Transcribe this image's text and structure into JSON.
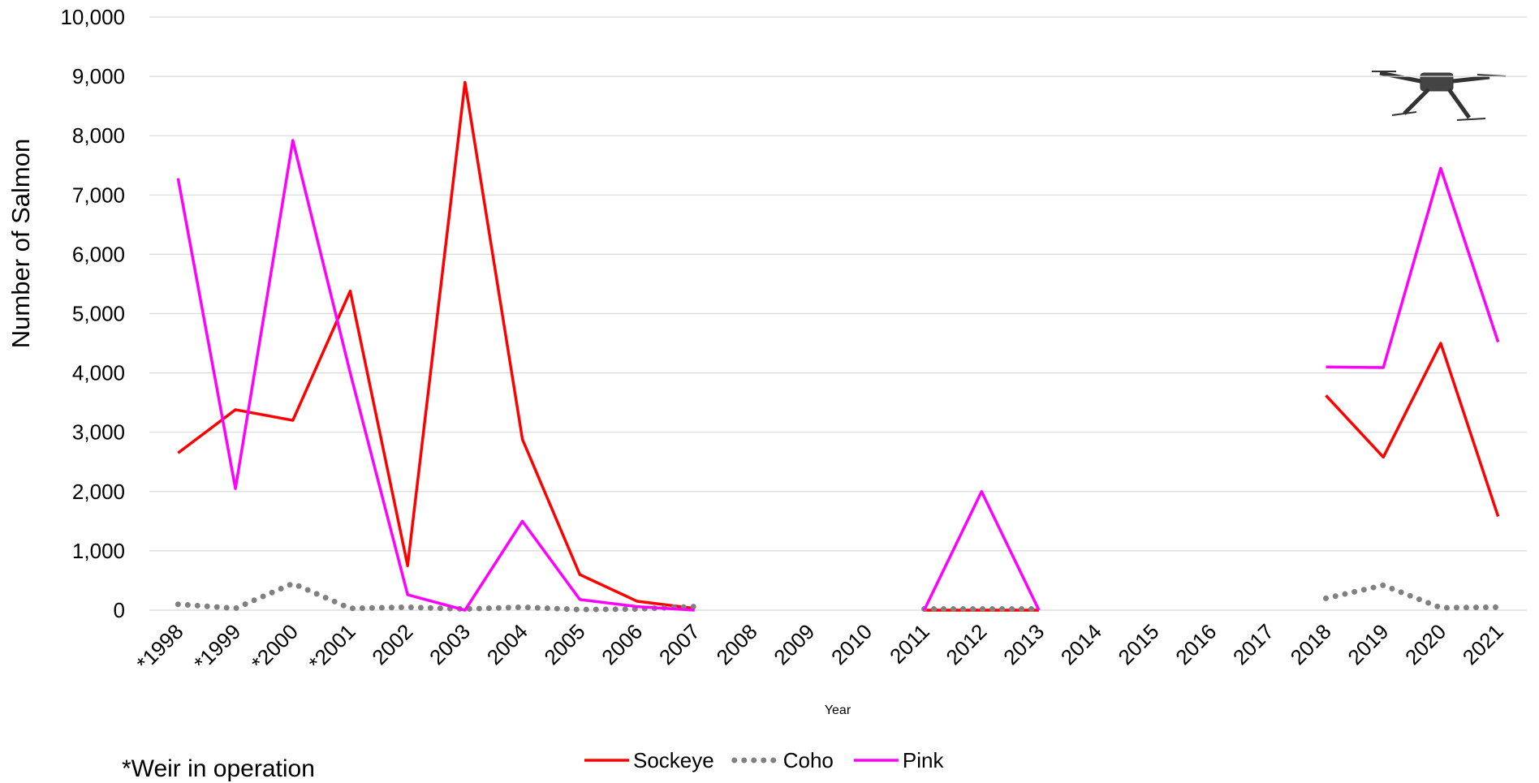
{
  "chart_data": {
    "type": "line",
    "y_label": "Number of Salmon",
    "x_label": "Year",
    "note": "*Weir in operation",
    "categories": [
      "*1998",
      "*1999",
      "*2000",
      "*2001",
      "2002",
      "2003",
      "2004",
      "2005",
      "2006",
      "2007",
      "2008",
      "2009",
      "2010",
      "2011",
      "2012",
      "2013",
      "2014",
      "2015",
      "2016",
      "2017",
      "2018",
      "2019",
      "2020",
      "2021"
    ],
    "series": [
      {
        "name": "Sockeye",
        "color": "#ff0000",
        "style": "solid",
        "values": [
          2650,
          3380,
          3200,
          5380,
          750,
          8900,
          2880,
          600,
          150,
          30,
          null,
          null,
          null,
          0,
          0,
          0,
          null,
          null,
          null,
          null,
          3620,
          2580,
          4500,
          1580
        ]
      },
      {
        "name": "Coho",
        "color": "#808080",
        "style": "dotted",
        "values": [
          100,
          30,
          450,
          30,
          50,
          20,
          50,
          10,
          20,
          60,
          null,
          null,
          null,
          20,
          20,
          20,
          null,
          null,
          null,
          null,
          200,
          420,
          40,
          50
        ]
      },
      {
        "name": "Pink",
        "color": "#ff00ff",
        "style": "solid",
        "values": [
          7280,
          2050,
          7920,
          4000,
          260,
          0,
          1500,
          180,
          60,
          0,
          null,
          null,
          null,
          0,
          2000,
          0,
          null,
          null,
          null,
          null,
          4100,
          4090,
          7450,
          4520
        ]
      }
    ],
    "ylim": [
      0,
      10000
    ],
    "yticks": [
      0,
      {
        "value": 1000,
        "label": "1,000"
      },
      {
        "value": 2000,
        "label": "2,000"
      },
      {
        "value": 3000,
        "label": "3,000"
      },
      {
        "value": 4000,
        "label": "4,000"
      },
      {
        "value": 5000,
        "label": "5,000"
      },
      {
        "value": 6000,
        "label": "6,000"
      },
      {
        "value": 7000,
        "label": "7,000"
      },
      {
        "value": 8000,
        "label": "8,000"
      },
      {
        "value": 9000,
        "label": "9,000"
      },
      {
        "value": 10000,
        "label": "10,000"
      }
    ],
    "grid": true,
    "legend": "bottom"
  }
}
